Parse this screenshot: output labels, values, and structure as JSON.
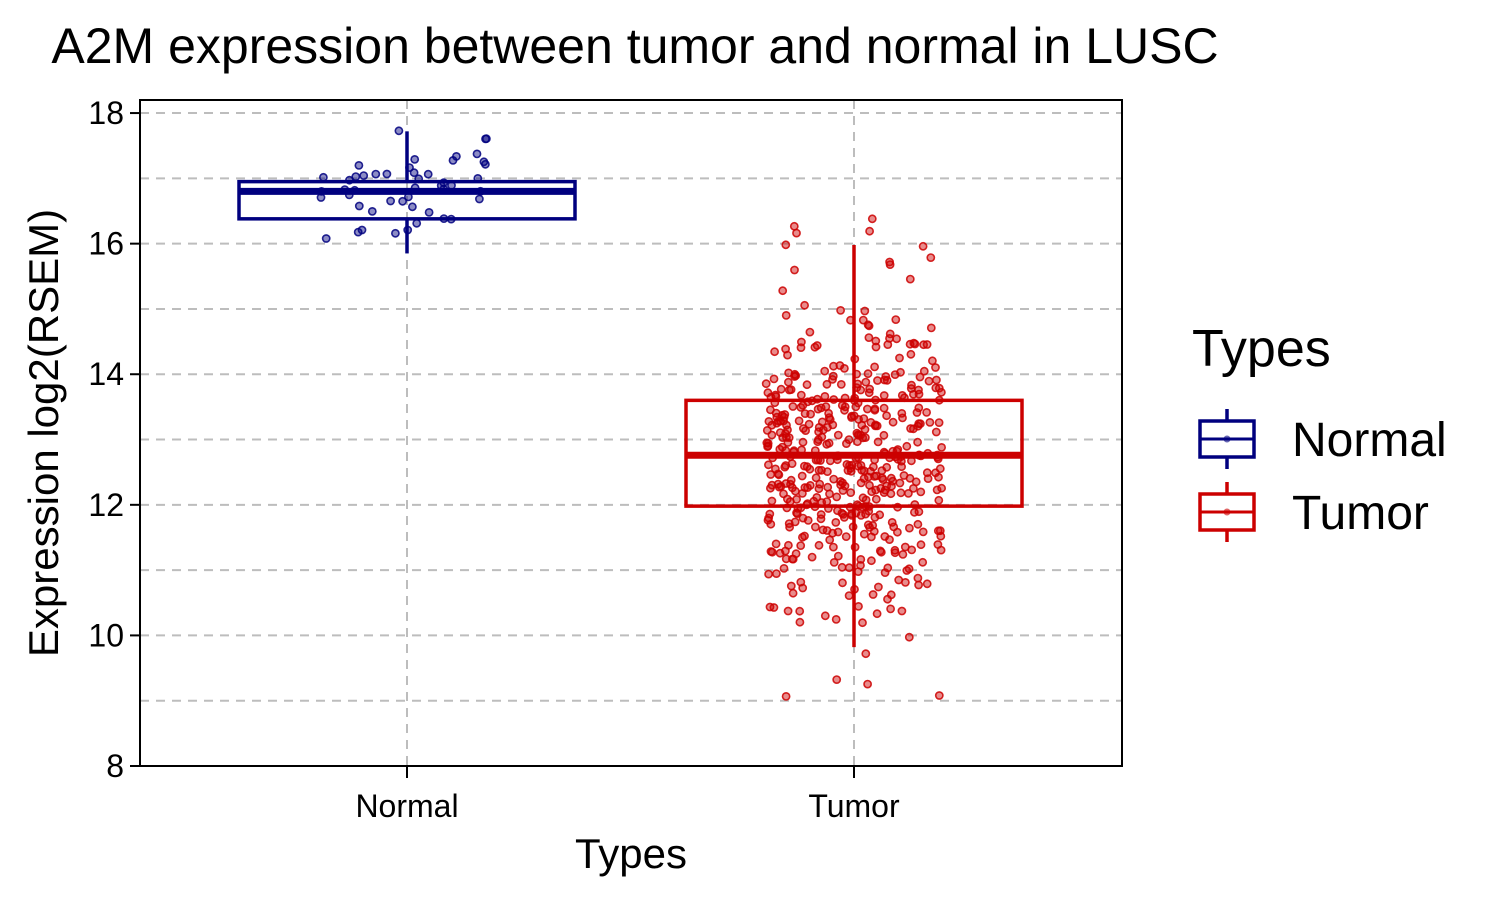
{
  "chart_data": {
    "type": "boxplot",
    "title": "A2M expression between tumor and normal in LUSC",
    "xlabel": "Types",
    "ylabel": "Expression log2(RSEM)",
    "categories": [
      "Normal",
      "Tumor"
    ],
    "ylim": [
      8,
      18.2
    ],
    "yticks": [
      8,
      10,
      12,
      14,
      16,
      18
    ],
    "grid": true,
    "legend": {
      "title": "Types",
      "position": "right",
      "entries": [
        "Normal",
        "Tumor"
      ]
    },
    "colors": {
      "Normal": "#00007f",
      "Tumor": "#cc0000"
    },
    "boxes": [
      {
        "name": "Normal",
        "lower_whisker": 15.85,
        "q1": 16.38,
        "median": 16.8,
        "q3": 16.95,
        "upper_whisker": 17.72,
        "n_points": 48
      },
      {
        "name": "Tumor",
        "lower_whisker": 9.82,
        "q1": 11.98,
        "median": 12.76,
        "q3": 13.6,
        "upper_whisker": 15.98,
        "n_points": 500
      }
    ]
  }
}
